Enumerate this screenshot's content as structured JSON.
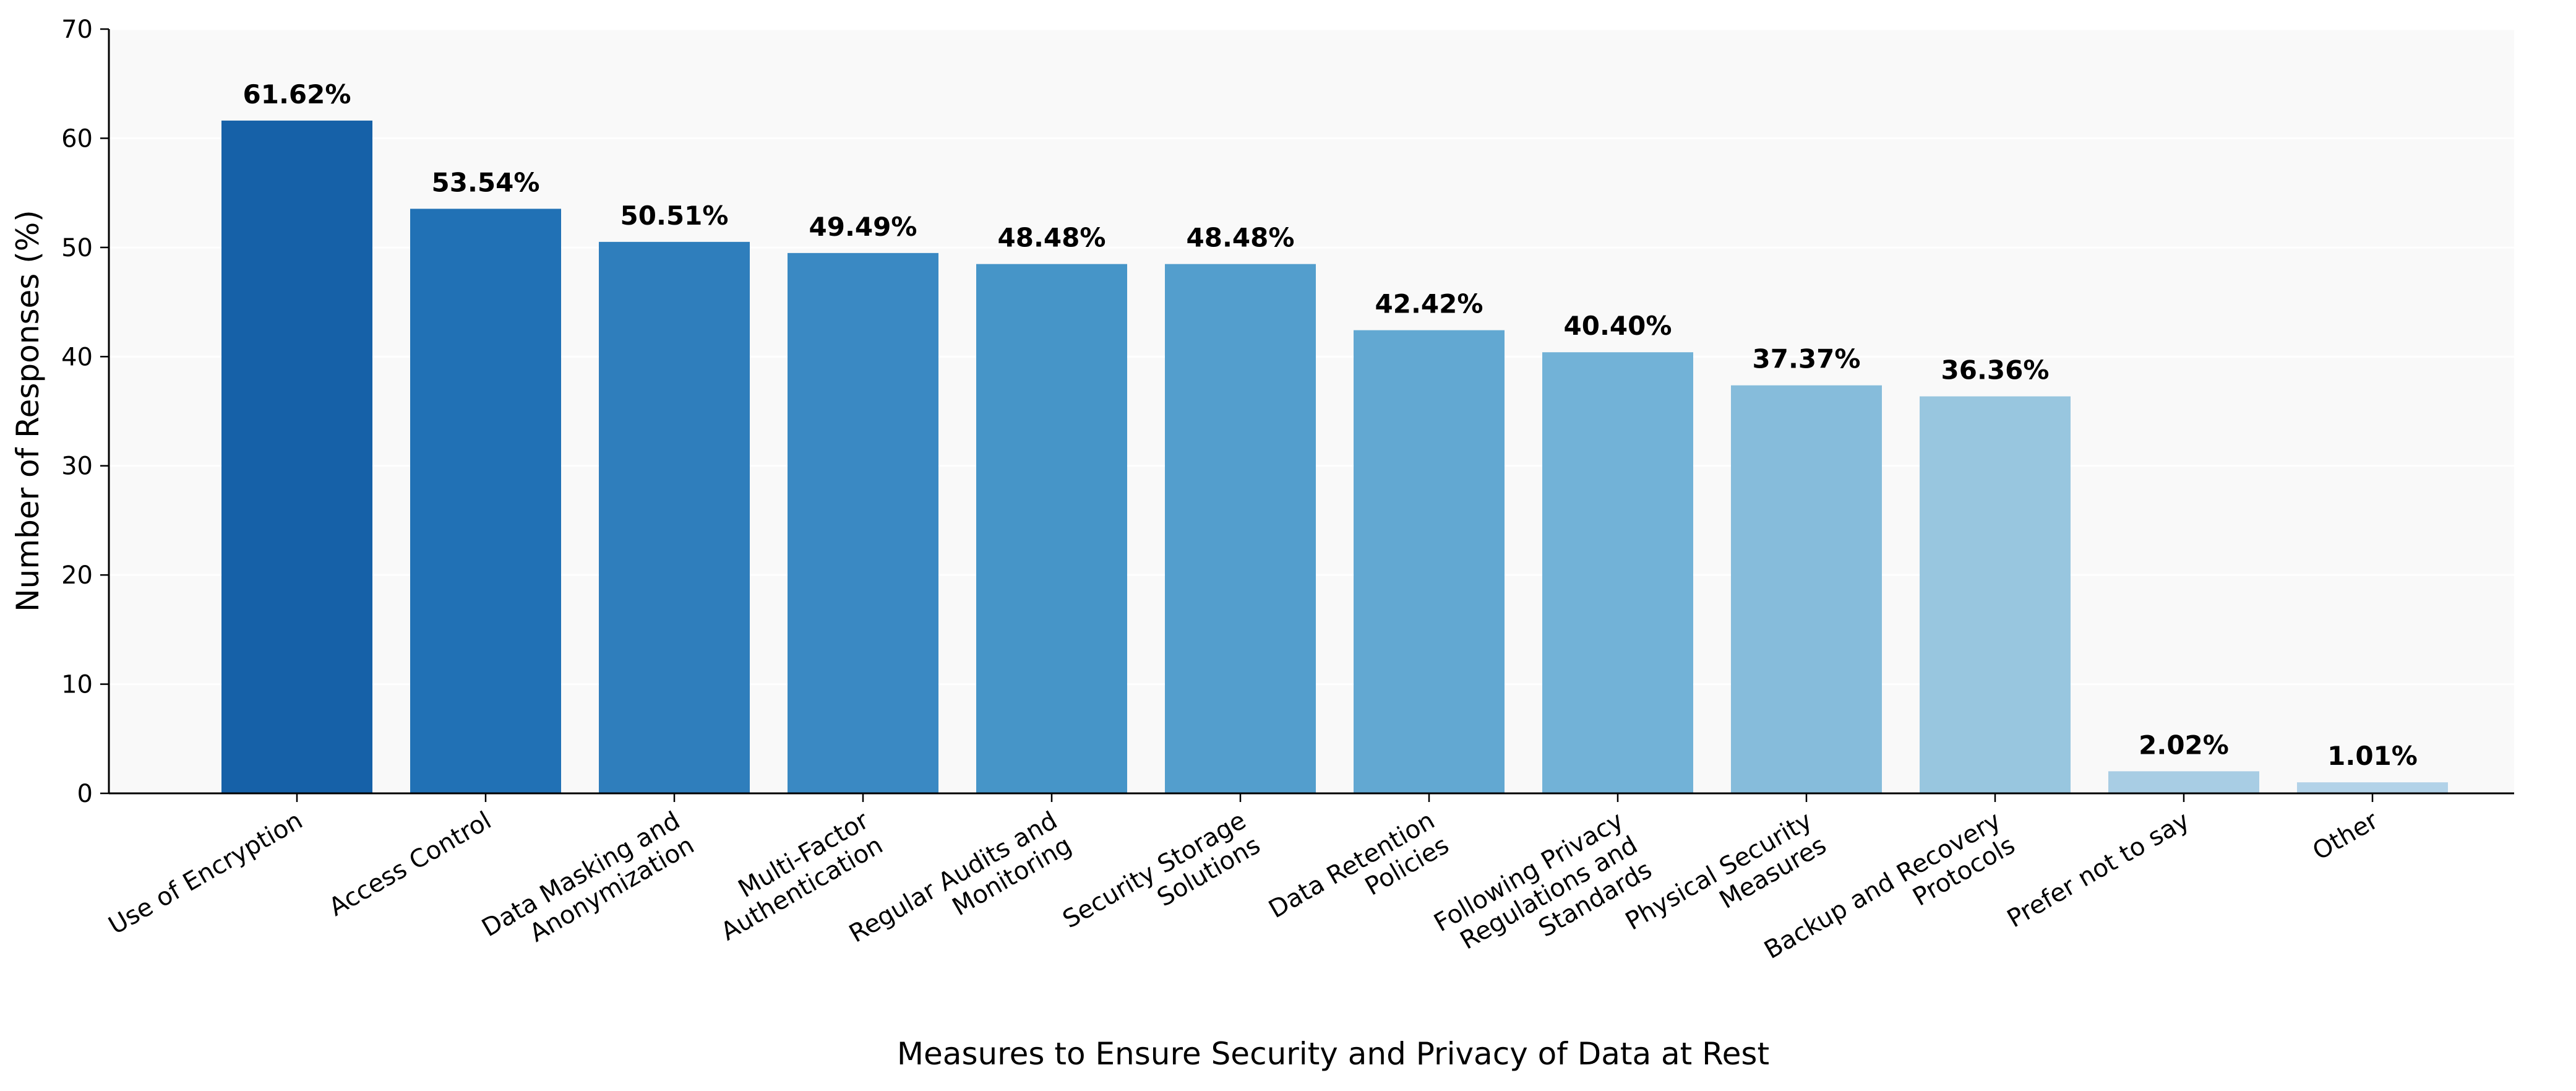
{
  "chart_data": {
    "type": "bar",
    "title": "",
    "xlabel": "Measures to Ensure Security and Privacy of Data at Rest",
    "ylabel": "Number of Responses (%)",
    "ylim": [
      0,
      70
    ],
    "yticks": [
      0,
      10,
      20,
      30,
      40,
      50,
      60,
      70
    ],
    "grid": "horizontal, light",
    "legend": "none",
    "categories": [
      [
        "Use of Encryption"
      ],
      [
        "Access Control"
      ],
      [
        "Data Masking and",
        "Anonymization"
      ],
      [
        "Multi-Factor",
        "Authentication"
      ],
      [
        "Regular Audits and",
        "Monitoring"
      ],
      [
        "Security Storage",
        "Solutions"
      ],
      [
        "Data Retention",
        "Policies"
      ],
      [
        "Following Privacy",
        "Regulations and",
        "Standards"
      ],
      [
        "Physical Security",
        "Measures"
      ],
      [
        "Backup and Recovery",
        "Protocols"
      ],
      [
        "Prefer not to say"
      ],
      [
        "Other"
      ]
    ],
    "values": [
      61.62,
      53.54,
      50.51,
      49.49,
      48.48,
      48.48,
      42.42,
      40.4,
      37.37,
      36.36,
      2.02,
      1.01
    ],
    "labels": [
      "61.62%",
      "53.54%",
      "50.51%",
      "49.49%",
      "48.48%",
      "48.48%",
      "42.42%",
      "40.40%",
      "37.37%",
      "36.36%",
      "2.02%",
      "1.01%"
    ],
    "colors": [
      "#1661a8",
      "#2171b5",
      "#2f7ebc",
      "#3a89c3",
      "#4695c8",
      "#539ecd",
      "#62a8d2",
      "#72b2d7",
      "#86bcdb",
      "#98c6df",
      "#a8cde4",
      "#b2d2e8"
    ]
  }
}
